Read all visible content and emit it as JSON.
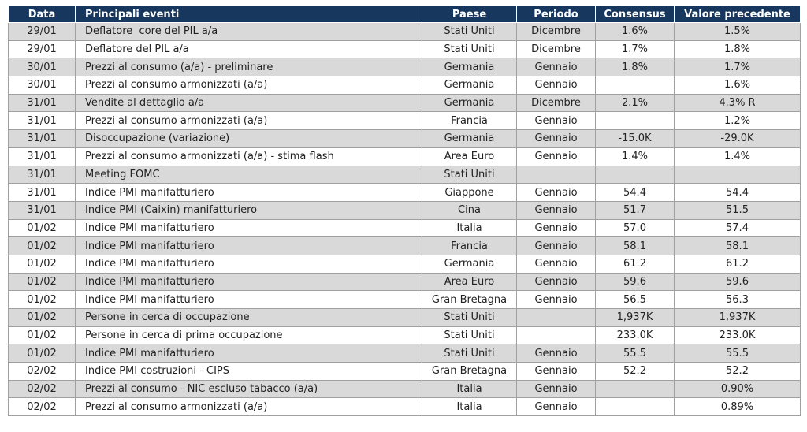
{
  "table": {
    "headers": [
      "Data",
      "Principali eventi",
      "Paese",
      "Periodo",
      "Consensus",
      "Valore precedente"
    ],
    "rows": [
      [
        "29/01",
        "Deflatore  core del PIL a/a",
        "Stati Uniti",
        "Dicembre",
        "1.6%",
        "1.5%"
      ],
      [
        "29/01",
        "Deflatore del PIL a/a",
        "Stati Uniti",
        "Dicembre",
        "1.7%",
        "1.8%"
      ],
      [
        "30/01",
        "Prezzi al consumo (a/a) - preliminare",
        "Germania",
        "Gennaio",
        "1.8%",
        "1.7%"
      ],
      [
        "30/01",
        "Prezzi al consumo armonizzati (a/a)",
        "Germania",
        "Gennaio",
        null,
        "1.6%"
      ],
      [
        "31/01",
        "Vendite al dettaglio a/a",
        "Germania",
        "Dicembre",
        "2.1%",
        "4.3% R"
      ],
      [
        "31/01",
        "Prezzi al consumo armonizzati (a/a)",
        "Francia",
        "Gennaio",
        null,
        "1.2%"
      ],
      [
        "31/01",
        "Disoccupazione (variazione)",
        "Germania",
        "Gennaio",
        "-15.0K",
        "-29.0K"
      ],
      [
        "31/01",
        "Prezzi al consumo armonizzati (a/a) - stima flash",
        "Area Euro",
        "Gennaio",
        "1.4%",
        "1.4%"
      ],
      [
        "31/01",
        "Meeting FOMC",
        "Stati Uniti",
        null,
        null,
        null
      ],
      [
        "31/01",
        "Indice PMI manifatturiero",
        "Giappone",
        "Gennaio",
        "54.4",
        "54.4"
      ],
      [
        "31/01",
        "Indice PMI (Caixin) manifatturiero",
        "Cina",
        "Gennaio",
        "51.7",
        "51.5"
      ],
      [
        "01/02",
        "Indice PMI manifatturiero",
        "Italia",
        "Gennaio",
        "57.0",
        "57.4"
      ],
      [
        "01/02",
        "Indice PMI manifatturiero",
        "Francia",
        "Gennaio",
        "58.1",
        "58.1"
      ],
      [
        "01/02",
        "Indice PMI manifatturiero",
        "Germania",
        "Gennaio",
        "61.2",
        "61.2"
      ],
      [
        "01/02",
        "Indice PMI manifatturiero",
        "Area Euro",
        "Gennaio",
        "59.6",
        "59.6"
      ],
      [
        "01/02",
        "Indice PMI manifatturiero",
        "Gran Bretagna",
        "Gennaio",
        "56.5",
        "56.3"
      ],
      [
        "01/02",
        "Persone in cerca di occupazione",
        "Stati Uniti",
        null,
        "1,937K",
        "1,937K"
      ],
      [
        "01/02",
        "Persone in cerca di prima occupazione",
        "Stati Uniti",
        null,
        "233.0K",
        "233.0K"
      ],
      [
        "01/02",
        "Indice PMI manifatturiero",
        "Stati Uniti",
        "Gennaio",
        "55.5",
        "55.5"
      ],
      [
        "02/02",
        "Indice PMI costruzioni - CIPS",
        "Gran Bretagna",
        "Gennaio",
        "52.2",
        "52.2"
      ],
      [
        "02/02",
        "Prezzi al consumo - NIC escluso tabacco (a/a)",
        "Italia",
        "Gennaio",
        null,
        "0.90%"
      ],
      [
        "02/02",
        "Prezzi al consumo armonizzati (a/a)",
        "Italia",
        "Gennaio",
        null,
        "0.89%"
      ]
    ]
  }
}
